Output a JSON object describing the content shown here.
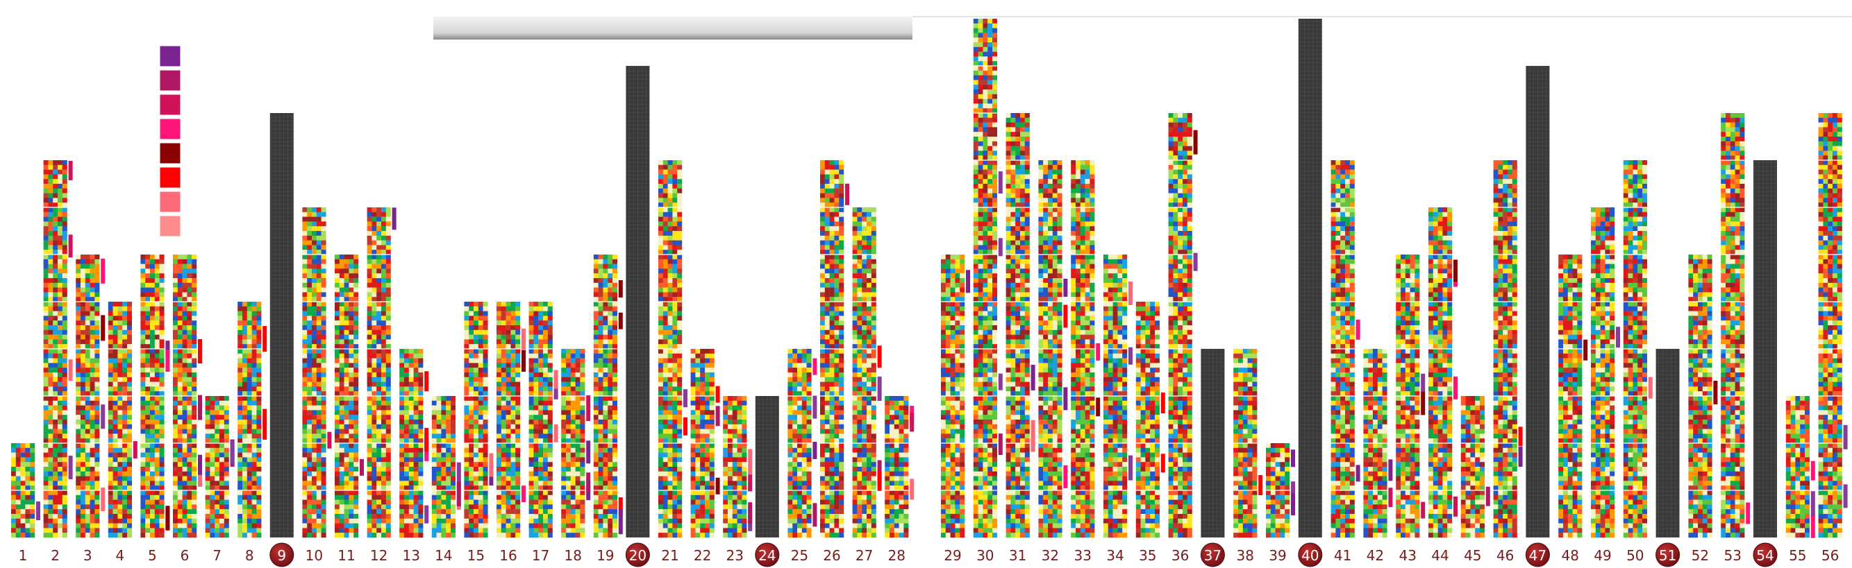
{
  "chart_data": {
    "type": "bar",
    "unit": 10,
    "colors": {
      "mosaic": [
        "#e01818",
        "#ff9800",
        "#ffe51a",
        "#f6f1c0",
        "#5ec63a",
        "#0fa84a",
        "#1ba1e2",
        "#2455c8",
        "#9d2323",
        "#c0392b",
        "#ff5a2a",
        "#a8e05a"
      ],
      "solid_bar": "#3a3a3a",
      "highlight_marker": "#8b1418",
      "side_markers": [
        "#7b2390",
        "#b01863",
        "#d01258",
        "#ff1577",
        "#8b0000",
        "#ff0000",
        "#ff6a78",
        "#8a3a9a"
      ],
      "label_text": "#7a1a1a",
      "highlight_text": "#ffffff"
    },
    "legend_colors": [
      "#7b2390",
      "#b01863",
      "#d01258",
      "#ff1577",
      "#8b0000",
      "#ff0000",
      "#ff6a78",
      "#ff8c8c"
    ],
    "panels": [
      {
        "categories": [
          "1",
          "2",
          "3",
          "4",
          "5",
          "6",
          "7",
          "8",
          "9",
          "10",
          "11",
          "12",
          "13",
          "14",
          "15",
          "16",
          "17",
          "18",
          "19",
          "20",
          "21",
          "22",
          "23",
          "24",
          "25",
          "26",
          "27",
          "28"
        ],
        "values": [
          20,
          80,
          60,
          50,
          60,
          60,
          30,
          50,
          90,
          70,
          60,
          70,
          40,
          30,
          50,
          50,
          50,
          40,
          60,
          100,
          80,
          40,
          30,
          30,
          40,
          80,
          70,
          30
        ],
        "highlighted": [
          "9",
          "20",
          "24"
        ]
      },
      {
        "categories": [
          "29",
          "30",
          "31",
          "32",
          "33",
          "34",
          "35",
          "36",
          "37",
          "38",
          "39",
          "40",
          "41",
          "42",
          "43",
          "44",
          "45",
          "46",
          "47",
          "48",
          "49",
          "50",
          "51",
          "52",
          "53",
          "54",
          "55",
          "56"
        ],
        "values": [
          60,
          110,
          90,
          80,
          80,
          60,
          50,
          90,
          40,
          40,
          20,
          110,
          80,
          40,
          60,
          70,
          30,
          80,
          100,
          60,
          70,
          80,
          40,
          60,
          90,
          80,
          30,
          90
        ],
        "highlighted": [
          "37",
          "40",
          "47",
          "51",
          "54"
        ]
      }
    ]
  }
}
